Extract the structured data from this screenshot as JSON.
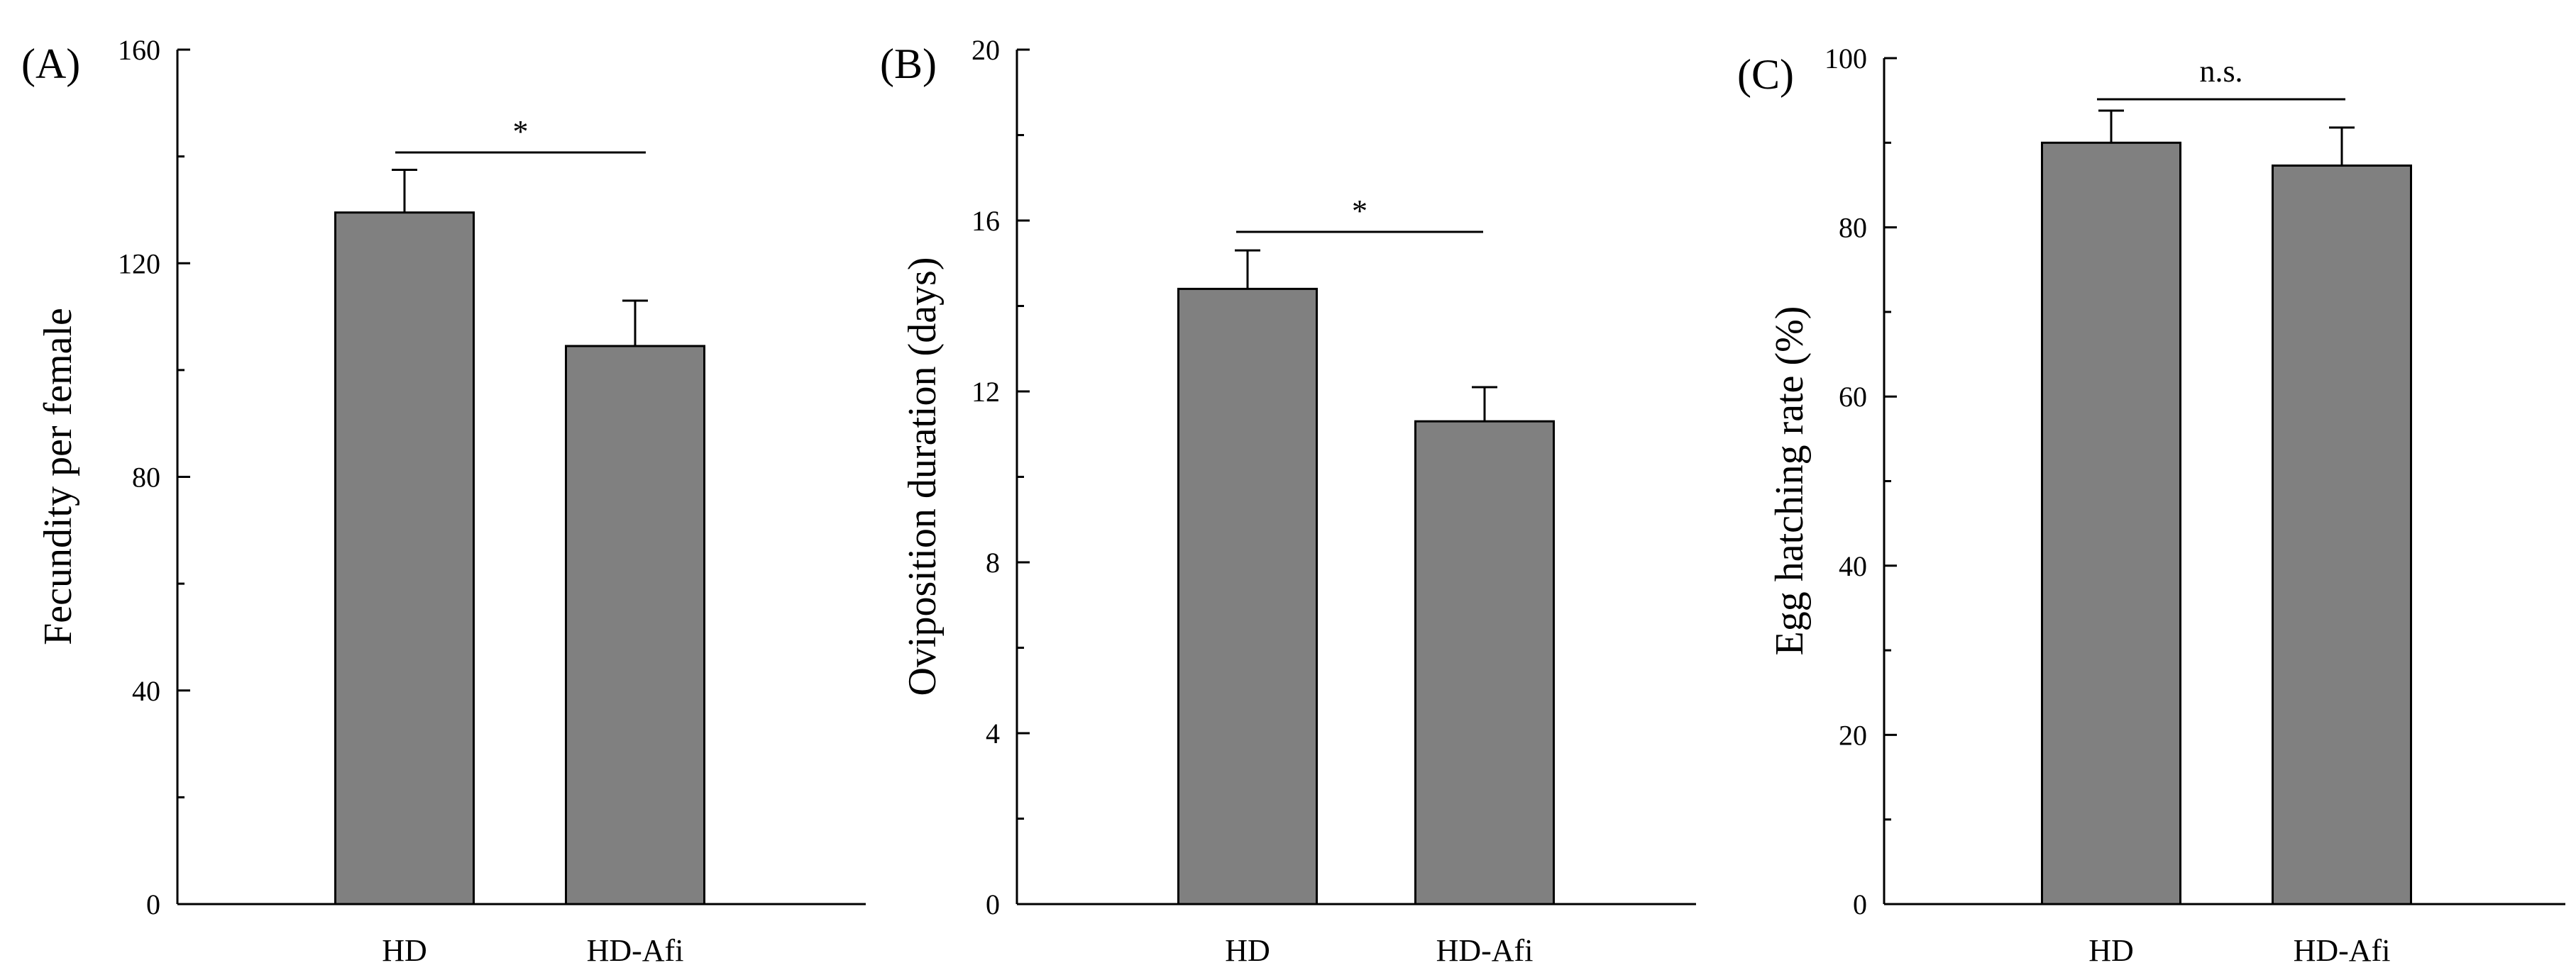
{
  "chart_data": [
    {
      "type": "bar",
      "panel_label": "(A)",
      "categories": [
        "HD",
        "HD-Afi"
      ],
      "values": [
        129.5,
        104.5
      ],
      "errors": [
        8,
        8.5
      ],
      "ylabel": "Fecundity per female",
      "ylim": [
        0,
        160
      ],
      "ticks": [
        0,
        40,
        80,
        120,
        160
      ],
      "ytick_labels": [
        "0",
        "40",
        "80",
        "120",
        "160"
      ],
      "significance": "*",
      "color": "#808080"
    },
    {
      "type": "bar",
      "panel_label": "(B)",
      "categories": [
        "HD",
        "HD-Afi"
      ],
      "values": [
        14.4,
        11.3
      ],
      "errors": [
        0.9,
        0.8
      ],
      "ylabel": "Oviposition duration (days)",
      "ylim": [
        0,
        20
      ],
      "ticks": [
        0,
        4,
        8,
        12,
        16,
        20
      ],
      "ytick_labels": [
        "0",
        "4",
        "8",
        "12",
        "16",
        "20"
      ],
      "significance": "*",
      "color": "#808080"
    },
    {
      "type": "bar",
      "panel_label": "(C)",
      "categories": [
        "HD",
        "HD-Afi"
      ],
      "values": [
        90,
        87.3
      ],
      "errors": [
        3.8,
        4.5
      ],
      "ylabel": "Egg hatching rate (%)",
      "ylim": [
        0,
        100
      ],
      "ticks": [
        0,
        20,
        40,
        60,
        80,
        100
      ],
      "ytick_labels": [
        "0",
        "20",
        "40",
        "60",
        "80",
        "100"
      ],
      "significance": "n.s.",
      "color": "#808080"
    }
  ]
}
